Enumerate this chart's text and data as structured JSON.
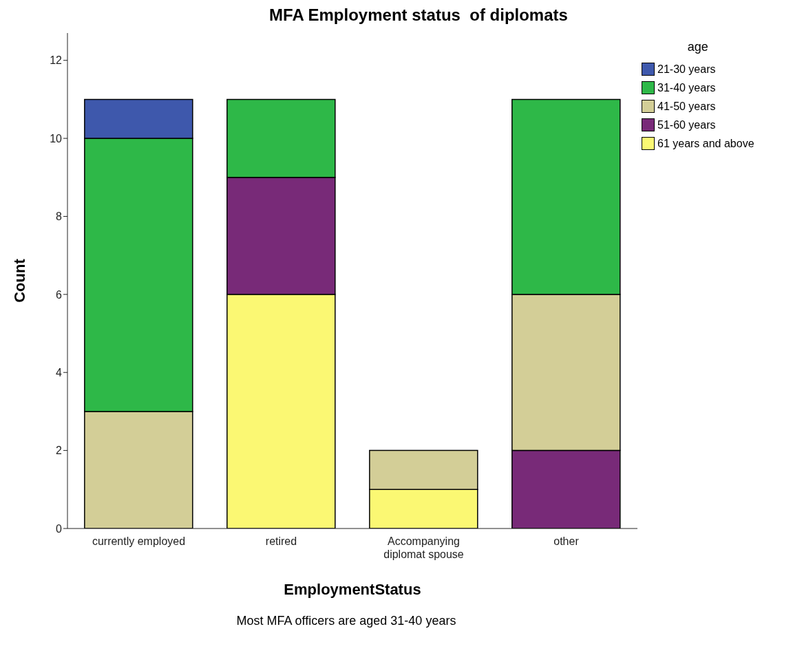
{
  "chart_data": {
    "type": "bar",
    "title": "MFA Employment status  of diplomats",
    "xlabel": "EmploymentStatus",
    "ylabel": "Count",
    "legend_title": "age",
    "categories": [
      "currently employed",
      "retired",
      "Accompanying diplomat spouse",
      "other"
    ],
    "stacked": true,
    "series": [
      {
        "name": "61 years and above",
        "color": "#fbf873",
        "values": [
          null,
          6,
          1,
          null
        ]
      },
      {
        "name": "51-60 years",
        "color": "#782a78",
        "values": [
          null,
          3,
          null,
          2
        ]
      },
      {
        "name": "41-50 years",
        "color": "#d3ce97",
        "values": [
          3,
          null,
          1,
          4
        ]
      },
      {
        "name": "31-40 years",
        "color": "#2eb848",
        "values": [
          7,
          2,
          null,
          5
        ]
      },
      {
        "name": "21-30 years",
        "color": "#3e58ac",
        "values": [
          1,
          null,
          null,
          null
        ]
      }
    ],
    "ylim": [
      0,
      12.7
    ],
    "yticks": [
      0,
      2,
      4,
      6,
      8,
      10,
      12
    ],
    "grid": false,
    "legend": "top right",
    "annotations": [
      "Most MFA officers are aged 31-40 years"
    ]
  }
}
